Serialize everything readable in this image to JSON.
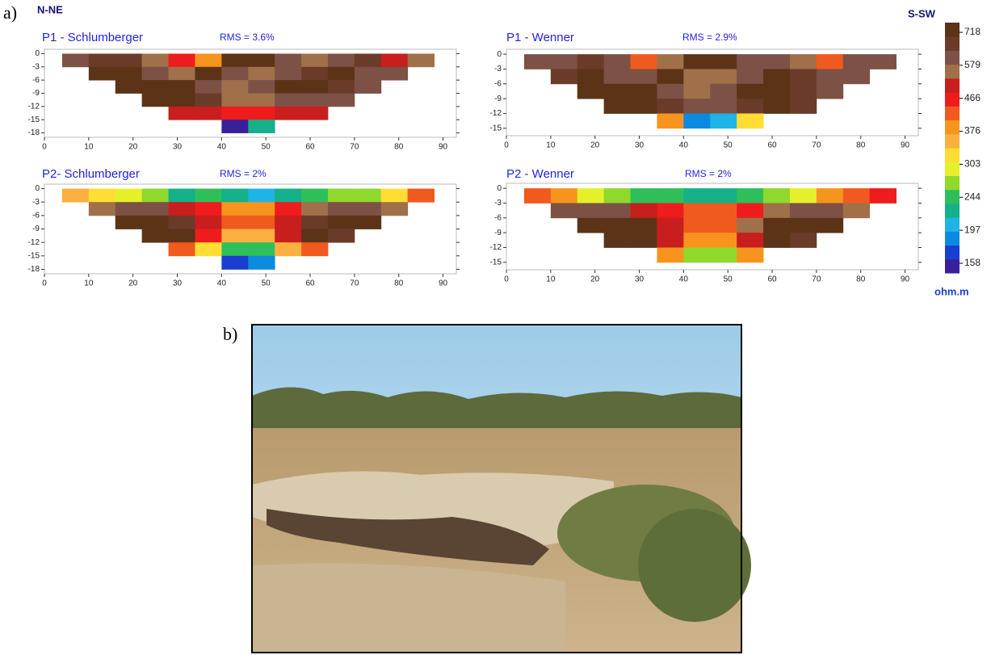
{
  "figure": {
    "label_a": "a)",
    "label_b": "b)",
    "left_direction": "N-NE",
    "right_direction": "S-SW"
  },
  "colorbar": {
    "unit": "ohm.m",
    "ticks": [
      158,
      197,
      244,
      303,
      376,
      466,
      579,
      718
    ],
    "colors": [
      "#3a1f9a",
      "#1a3ecf",
      "#0b8ae0",
      "#1eb4e6",
      "#13b08a",
      "#2fbf5a",
      "#8fd82c",
      "#e6f02a",
      "#ffdd33",
      "#fcb040",
      "#f7941d",
      "#f05a1e",
      "#ee1c1c",
      "#c81e1e",
      "#a0704a",
      "#7d5145",
      "#6b3b2a",
      "#5c3317"
    ]
  },
  "chart_data": [
    {
      "type": "heatmap",
      "title": "P1 - Schlumberger",
      "rms": "RMS = 3.6%",
      "xlim": [
        0,
        93
      ],
      "ylim": [
        -19,
        1
      ],
      "xticks": [
        0,
        10,
        20,
        30,
        40,
        50,
        60,
        70,
        80,
        90
      ],
      "yticks": [
        0,
        -3,
        -6,
        -9,
        -12,
        -15,
        -18
      ],
      "x": [
        4,
        10,
        16,
        22,
        28,
        34,
        40,
        46,
        52,
        58,
        64,
        70,
        76,
        82
      ],
      "depths": [
        0,
        -3,
        -6,
        -9,
        -12,
        -15
      ],
      "values": [
        [
          600,
          650,
          700,
          550,
          450,
          380,
          750,
          750,
          600,
          550,
          600,
          650,
          500,
          550
        ],
        [
          null,
          720,
          750,
          600,
          560,
          720,
          600,
          560,
          600,
          700,
          720,
          600,
          600,
          null
        ],
        [
          null,
          null,
          720,
          760,
          760,
          600,
          560,
          600,
          720,
          760,
          700,
          600,
          null,
          null
        ],
        [
          null,
          null,
          null,
          720,
          760,
          650,
          580,
          560,
          600,
          620,
          600,
          null,
          null,
          null
        ],
        [
          null,
          null,
          null,
          null,
          500,
          520,
          480,
          470,
          520,
          500,
          null,
          null,
          null,
          null
        ],
        [
          null,
          null,
          null,
          null,
          null,
          null,
          160,
          230,
          null,
          null,
          null,
          null,
          null,
          null
        ]
      ]
    },
    {
      "type": "heatmap",
      "title": "P1 - Wenner",
      "rms": "RMS = 2.9%",
      "xlim": [
        0,
        93
      ],
      "ylim": [
        -16.5,
        1
      ],
      "xticks": [
        0,
        10,
        20,
        30,
        40,
        50,
        60,
        70,
        80,
        90
      ],
      "yticks": [
        0,
        -3,
        -6,
        -9,
        -12,
        -15
      ],
      "x": [
        4,
        10,
        16,
        22,
        28,
        34,
        40,
        46,
        52,
        58,
        64,
        70,
        76,
        82
      ],
      "depths": [
        0,
        -3,
        -6,
        -9,
        -12
      ],
      "values": [
        [
          600,
          620,
          650,
          600,
          420,
          560,
          750,
          740,
          620,
          600,
          560,
          420,
          600,
          620
        ],
        [
          null,
          700,
          750,
          620,
          600,
          720,
          580,
          560,
          620,
          720,
          700,
          600,
          620,
          null
        ],
        [
          null,
          null,
          720,
          760,
          760,
          620,
          580,
          620,
          760,
          760,
          700,
          640,
          null,
          null
        ],
        [
          null,
          null,
          null,
          760,
          760,
          700,
          600,
          600,
          700,
          760,
          650,
          null,
          null,
          null
        ],
        [
          null,
          null,
          null,
          null,
          null,
          400,
          190,
          200,
          320,
          null,
          null,
          null,
          null,
          null
        ]
      ]
    },
    {
      "type": "heatmap",
      "title": "P2- Schlumberger",
      "rms": "RMS = 2%",
      "xlim": [
        0,
        93
      ],
      "ylim": [
        -19,
        1
      ],
      "xticks": [
        0,
        10,
        20,
        30,
        40,
        50,
        60,
        70,
        80,
        90
      ],
      "yticks": [
        0,
        -3,
        -6,
        -9,
        -12,
        -15,
        -18
      ],
      "x": [
        4,
        10,
        16,
        22,
        28,
        34,
        40,
        46,
        52,
        58,
        64,
        70,
        76,
        82
      ],
      "depths": [
        0,
        -3,
        -6,
        -9,
        -12,
        -15
      ],
      "values": [
        [
          350,
          320,
          300,
          260,
          230,
          240,
          220,
          210,
          230,
          240,
          260,
          280,
          320,
          420
        ],
        [
          null,
          560,
          600,
          620,
          500,
          450,
          400,
          400,
          450,
          560,
          620,
          600,
          560,
          null
        ],
        [
          null,
          null,
          750,
          760,
          700,
          500,
          420,
          420,
          520,
          700,
          760,
          720,
          null,
          null
        ],
        [
          null,
          null,
          null,
          760,
          720,
          480,
          360,
          360,
          500,
          720,
          700,
          null,
          null,
          null
        ],
        [
          null,
          null,
          null,
          null,
          420,
          330,
          250,
          250,
          340,
          420,
          null,
          null,
          null,
          null
        ],
        [
          null,
          null,
          null,
          null,
          null,
          null,
          170,
          180,
          null,
          null,
          null,
          null,
          null,
          null
        ]
      ]
    },
    {
      "type": "heatmap",
      "title": "P2 - Wenner",
      "rms": "RMS = 2%",
      "xlim": [
        0,
        93
      ],
      "ylim": [
        -16.5,
        1
      ],
      "xticks": [
        0,
        10,
        20,
        30,
        40,
        50,
        60,
        70,
        80,
        90
      ],
      "yticks": [
        0,
        -3,
        -6,
        -9,
        -12,
        -15
      ],
      "x": [
        4,
        10,
        16,
        22,
        28,
        34,
        40,
        46,
        52,
        58,
        64,
        70,
        76,
        82
      ],
      "depths": [
        0,
        -3,
        -6,
        -9,
        -12
      ],
      "values": [
        [
          420,
          380,
          300,
          260,
          240,
          250,
          230,
          220,
          240,
          260,
          300,
          380,
          420,
          450
        ],
        [
          null,
          600,
          620,
          600,
          520,
          460,
          420,
          420,
          460,
          580,
          620,
          620,
          580,
          null
        ],
        [
          null,
          null,
          750,
          760,
          720,
          520,
          440,
          440,
          540,
          740,
          760,
          720,
          null,
          null
        ],
        [
          null,
          null,
          null,
          760,
          730,
          500,
          380,
          380,
          520,
          740,
          680,
          null,
          null,
          null
        ],
        [
          null,
          null,
          null,
          null,
          null,
          400,
          270,
          280,
          380,
          null,
          null,
          null,
          null,
          null
        ]
      ]
    }
  ]
}
